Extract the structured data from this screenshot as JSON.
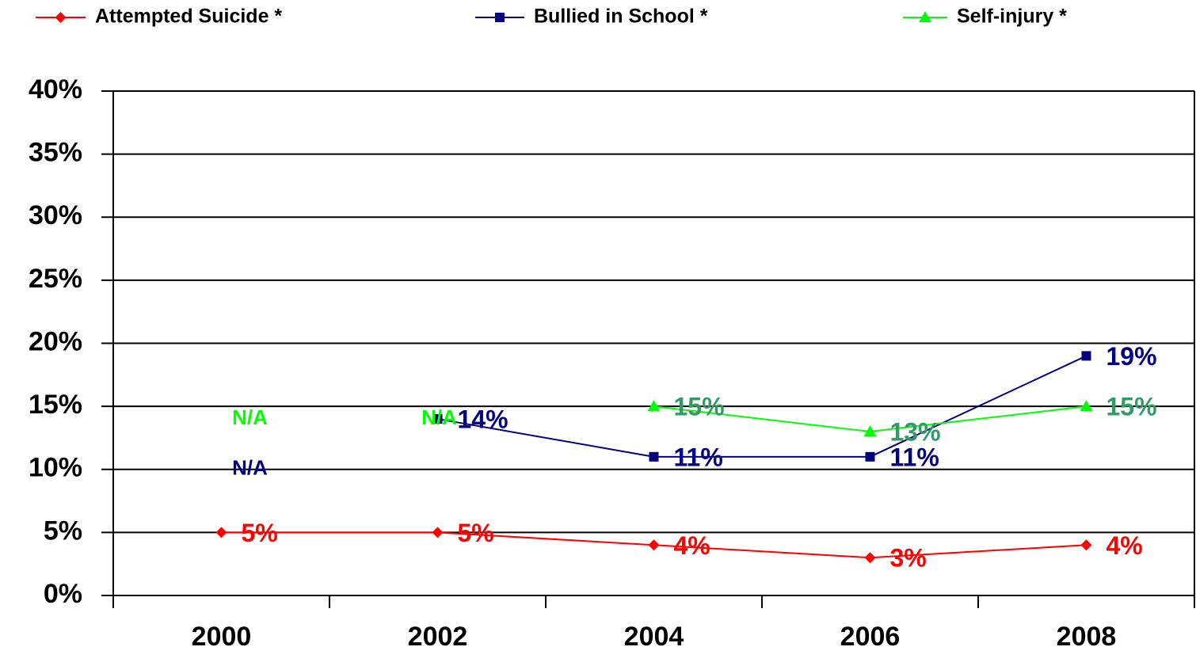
{
  "chart_data": {
    "type": "line",
    "categories": [
      "2000",
      "2002",
      "2004",
      "2006",
      "2008"
    ],
    "series": [
      {
        "name": "Attempted Suicide *",
        "color": "#ff0000",
        "label_color": "#ff0000",
        "marker": "diamond",
        "values": [
          5,
          5,
          4,
          3,
          4
        ],
        "value_labels": [
          "5%",
          "5%",
          "4%",
          "3%",
          "4%"
        ]
      },
      {
        "name": "Bullied in School *",
        "color": "#000080",
        "label_color": "#000080",
        "marker": "square",
        "values": [
          null,
          14,
          11,
          11,
          19
        ],
        "value_labels": [
          "N/A",
          "14%",
          "11%",
          "11%",
          "19%"
        ]
      },
      {
        "name": "Self-injury *",
        "color": "#00ff00",
        "label_color": "#339966",
        "marker": "triangle",
        "values": [
          null,
          null,
          15,
          13,
          15
        ],
        "value_labels": [
          "N/A",
          "N/A",
          "15%",
          "13%",
          "15%"
        ]
      }
    ],
    "ylim": [
      0,
      40
    ],
    "yticks": [
      {
        "value": 0,
        "label": "0%"
      },
      {
        "value": 5,
        "label": "5%"
      },
      {
        "value": 10,
        "label": "10%"
      },
      {
        "value": 15,
        "label": "15%"
      },
      {
        "value": 20,
        "label": "20%"
      },
      {
        "value": 25,
        "label": "25%"
      },
      {
        "value": 30,
        "label": "30%"
      },
      {
        "value": 35,
        "label": "35%"
      },
      {
        "value": 40,
        "label": "40%"
      }
    ],
    "grid": true
  }
}
